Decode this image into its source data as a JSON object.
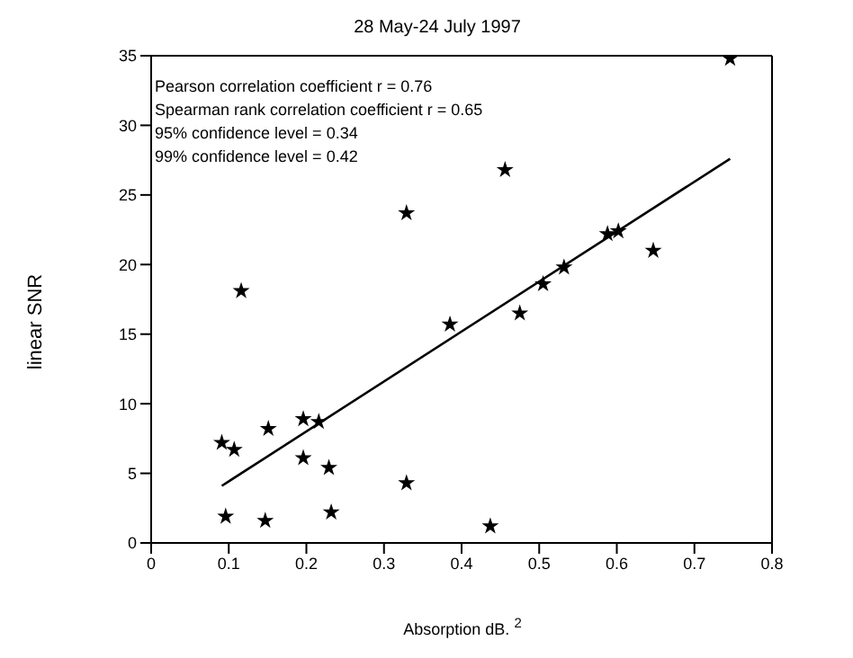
{
  "chart_data": {
    "type": "scatter",
    "title": "28 May-24 July 1997",
    "xlabel": "Absorption dB. $^{2}$",
    "ylabel": "linear SNR",
    "annotations": [
      "Pearson correlation coefficient r = 0.76",
      "Spearman rank correlation coefficient r = 0.65",
      "95% confidence level = 0.34",
      "99% confidence level = 0.42"
    ],
    "xlim": [
      0,
      0.8
    ],
    "xticks": [
      0,
      0.1,
      0.2,
      0.3,
      0.4,
      0.5,
      0.6,
      0.7,
      0.8
    ],
    "ylim": [
      0,
      35
    ],
    "yticks": [
      0,
      5,
      10,
      15,
      20,
      25,
      30,
      35
    ],
    "marker": "star",
    "series": [
      {
        "color": "#000000",
        "x": [
          0.091,
          0.107,
          0.151,
          0.196,
          0.216,
          0.196,
          0.229,
          0.096,
          0.147,
          0.232,
          0.329,
          0.385,
          0.475,
          0.437,
          0.116,
          0.329,
          0.456,
          0.746,
          0.588,
          0.602,
          0.647,
          0.532,
          0.505
        ],
        "values": [
          7.2,
          6.7,
          8.2,
          8.9,
          8.7,
          6.1,
          5.4,
          1.9,
          1.6,
          2.2,
          4.3,
          15.7,
          16.5,
          1.2,
          18.1,
          23.7,
          26.8,
          34.8,
          22.2,
          22.4,
          21.0,
          19.8,
          18.6
        ]
      },
      {
        "type": "line",
        "color": "#000000",
        "x": [
          0.091,
          0.746
        ],
        "values": [
          4.1,
          27.6
        ],
        "marker": "none",
        "line_style": "solid"
      }
    ]
  }
}
